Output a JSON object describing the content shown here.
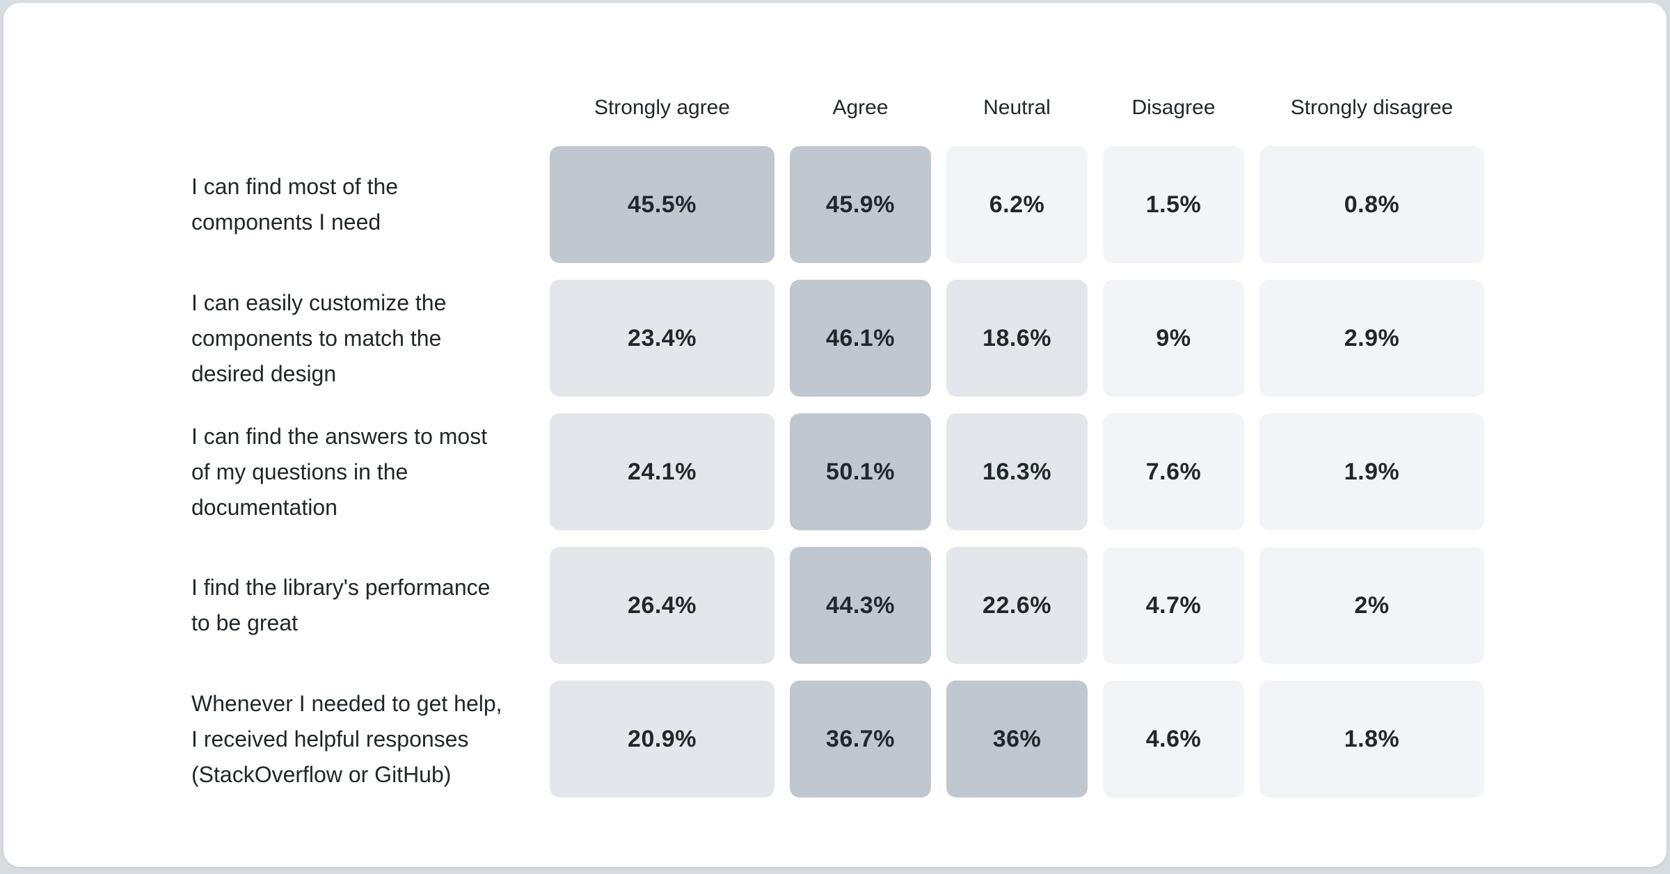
{
  "page": {
    "background_color": "#d7dce1",
    "card_color": "#ffffff"
  },
  "chart_data": {
    "type": "heatmap",
    "title": "",
    "columns": [
      "Strongly agree",
      "Agree",
      "Neutral",
      "Disagree",
      "Strongly disagree"
    ],
    "rows": [
      {
        "label": "I can find most of the components I need",
        "lines": [
          "I can find most of the",
          "components I need"
        ],
        "values": [
          45.5,
          45.9,
          6.2,
          1.5,
          0.8
        ],
        "display": [
          "45.5%",
          "45.9%",
          "6.2%",
          "1.5%",
          "0.8%"
        ]
      },
      {
        "label": "I can easily customize the components to match the desired design",
        "lines": [
          "I can easily customize the",
          "components to match the",
          "desired design"
        ],
        "values": [
          23.4,
          46.1,
          18.6,
          9,
          2.9
        ],
        "display": [
          "23.4%",
          "46.1%",
          "18.6%",
          "9%",
          "2.9%"
        ]
      },
      {
        "label": "I can find the answers to most of my questions in the documentation",
        "lines": [
          "I can find the answers to most",
          "of my questions in the",
          "documentation"
        ],
        "values": [
          24.1,
          50.1,
          16.3,
          7.6,
          1.9
        ],
        "display": [
          "24.1%",
          "50.1%",
          "16.3%",
          "7.6%",
          "1.9%"
        ]
      },
      {
        "label": "I find the library's performance to be great",
        "lines": [
          "I find the library's performance",
          "to be great"
        ],
        "values": [
          26.4,
          44.3,
          22.6,
          4.7,
          2
        ],
        "display": [
          "26.4%",
          "44.3%",
          "22.6%",
          "4.7%",
          "2%"
        ]
      },
      {
        "label": "Whenever I needed to get help, I received helpful responses (StackOverflow or GitHub)",
        "lines": [
          "Whenever I needed to get help,",
          "I received helpful responses",
          "(StackOverflow or GitHub)"
        ],
        "values": [
          20.9,
          36.7,
          36,
          4.6,
          1.8
        ],
        "display": [
          "20.9%",
          "36.7%",
          "36%",
          "4.6%",
          "1.8%"
        ]
      }
    ],
    "color_scale": {
      "low": "#f2f4f7",
      "mid": "#e3e6ea",
      "high": "#c1c7cf",
      "thresholds": [
        10,
        30
      ]
    },
    "legend": "none",
    "grid": false
  }
}
